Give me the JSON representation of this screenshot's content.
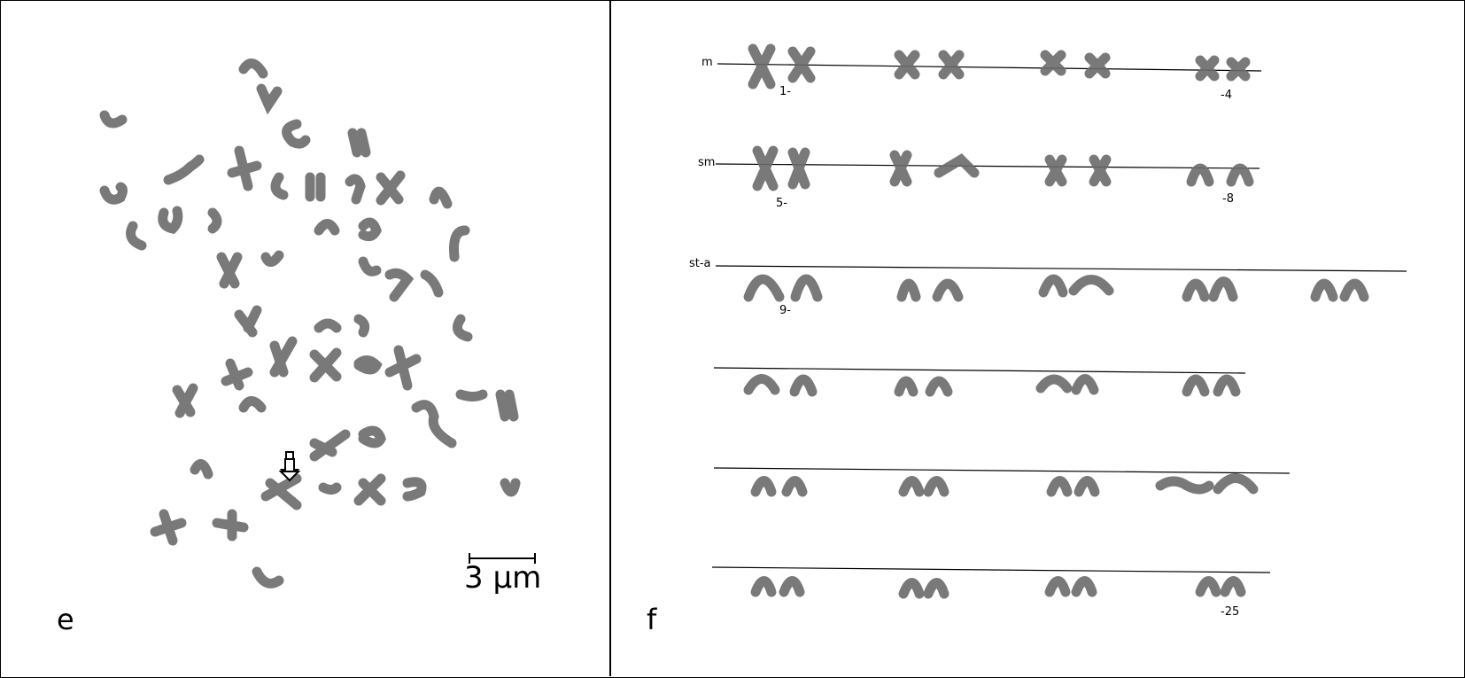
{
  "panel_e": {
    "letter": "e",
    "scale_bar_label": "3 µm"
  },
  "panel_f": {
    "letter": "f",
    "rows": [
      {
        "label": "m",
        "start_num": "1-",
        "end_num": "-4"
      },
      {
        "label": "sm",
        "start_num": "5-",
        "end_num": "-8"
      },
      {
        "label": "st-a",
        "start_num": "9-",
        "end_num": ""
      },
      {
        "label": "",
        "start_num": "",
        "end_num": ""
      },
      {
        "label": "",
        "start_num": "",
        "end_num": ""
      },
      {
        "label": "",
        "start_num": "",
        "end_num": "-25"
      }
    ]
  },
  "colors": {
    "chromosome": "#6b6b6b",
    "line": "#000000"
  }
}
